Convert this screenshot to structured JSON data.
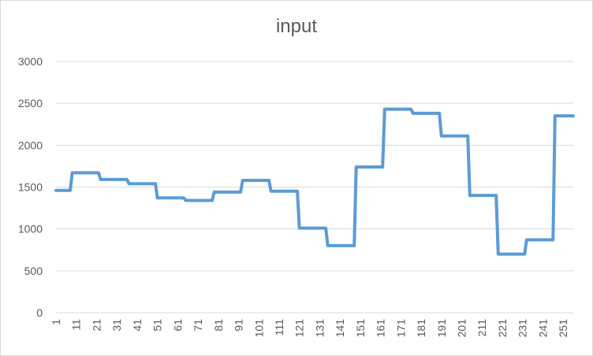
{
  "chart_data": {
    "type": "line",
    "title": "input",
    "xlabel": "",
    "ylabel": "",
    "ylim": [
      0,
      3000
    ],
    "xlim": [
      1,
      256
    ],
    "y_ticks": [
      0,
      500,
      1000,
      1500,
      2000,
      2500,
      3000
    ],
    "x_tick_labels": [
      "1",
      "11",
      "21",
      "31",
      "41",
      "51",
      "61",
      "71",
      "81",
      "91",
      "101",
      "111",
      "121",
      "131",
      "141",
      "151",
      "161",
      "171",
      "181",
      "191",
      "201",
      "211",
      "221",
      "231",
      "241",
      "251"
    ],
    "grid": true,
    "legend": "none",
    "color": "#5b9bd5",
    "series": [
      {
        "values": [
          [
            1,
            1460
          ],
          [
            8,
            1460
          ],
          [
            9,
            1670
          ],
          [
            22,
            1670
          ],
          [
            23,
            1590
          ],
          [
            36,
            1590
          ],
          [
            37,
            1540
          ],
          [
            50,
            1540
          ],
          [
            51,
            1370
          ],
          [
            64,
            1370
          ],
          [
            65,
            1340
          ],
          [
            78,
            1340
          ],
          [
            79,
            1440
          ],
          [
            92,
            1440
          ],
          [
            93,
            1580
          ],
          [
            106,
            1580
          ],
          [
            107,
            1450
          ],
          [
            120,
            1450
          ],
          [
            121,
            1010
          ],
          [
            134,
            1010
          ],
          [
            135,
            800
          ],
          [
            148,
            800
          ],
          [
            149,
            1740
          ],
          [
            162,
            1740
          ],
          [
            163,
            2430
          ],
          [
            176,
            2430
          ],
          [
            177,
            2380
          ],
          [
            190,
            2380
          ],
          [
            191,
            2110
          ],
          [
            204,
            2110
          ],
          [
            205,
            1400
          ],
          [
            218,
            1400
          ],
          [
            219,
            700
          ],
          [
            232,
            700
          ],
          [
            233,
            870
          ],
          [
            246,
            870
          ],
          [
            247,
            2350
          ],
          [
            256,
            2350
          ]
        ]
      }
    ]
  }
}
